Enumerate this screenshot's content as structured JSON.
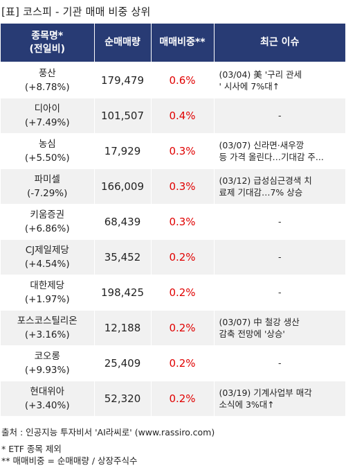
{
  "title": "[표] 코스피 - 기관 매매 비중 상위",
  "headers": {
    "name_line1": "종목명*",
    "name_line2": "(전일비)",
    "volume": "순매매량",
    "ratio": "매매비중**",
    "issue": "최근 이슈"
  },
  "rows": [
    {
      "name": "풍산",
      "change": "(+8.78%)",
      "volume": "179,479",
      "ratio": "0.6%",
      "issue_line1": "(03/04) 美 '구리 관세",
      "issue_line2": "' 시사에 7%대↑"
    },
    {
      "name": "디아이",
      "change": "(+7.49%)",
      "volume": "101,507",
      "ratio": "0.4%",
      "issue_line1": "-",
      "issue_line2": ""
    },
    {
      "name": "농심",
      "change": "(+5.50%)",
      "volume": "17,929",
      "ratio": "0.3%",
      "issue_line1": "(03/07) 신라면·새우깡",
      "issue_line2": "등 가격 올린다…기대감 주..."
    },
    {
      "name": "파미셀",
      "change": "(-7.29%)",
      "volume": "166,009",
      "ratio": "0.3%",
      "issue_line1": "(03/12) 급성심근경색 치",
      "issue_line2": "료제 기대감…7% 상승"
    },
    {
      "name": "키움증권",
      "change": "(+6.86%)",
      "volume": "68,439",
      "ratio": "0.3%",
      "issue_line1": "-",
      "issue_line2": ""
    },
    {
      "name": "CJ제일제당",
      "change": "(+4.54%)",
      "volume": "35,452",
      "ratio": "0.2%",
      "issue_line1": "-",
      "issue_line2": ""
    },
    {
      "name": "대한제당",
      "change": "(+1.97%)",
      "volume": "198,425",
      "ratio": "0.2%",
      "issue_line1": "-",
      "issue_line2": ""
    },
    {
      "name": "포스코스틸리온",
      "change": "(+3.16%)",
      "volume": "12,188",
      "ratio": "0.2%",
      "issue_line1": "(03/07) 中 철강 생산",
      "issue_line2": "감축 전망에 '상승'"
    },
    {
      "name": "코오롱",
      "change": "(+9.93%)",
      "volume": "25,409",
      "ratio": "0.2%",
      "issue_line1": "-",
      "issue_line2": ""
    },
    {
      "name": "현대위아",
      "change": "(+3.40%)",
      "volume": "52,320",
      "ratio": "0.2%",
      "issue_line1": "(03/19) 기계사업부 매각",
      "issue_line2": " 소식에 3%대↑"
    }
  ],
  "footer": {
    "source": "출처 : 인공지능 투자비서 'AI라씨로' (www.rassiro.com)",
    "note1": "* ETF 종목 제외",
    "note2": "** 매매비중 = 순매매량 / 상장주식수"
  },
  "colors": {
    "header_bg": "#283b74",
    "header_text": "#ffffff",
    "ratio_text": "#e00000",
    "row_alt_bg": "#f1f1f1"
  }
}
